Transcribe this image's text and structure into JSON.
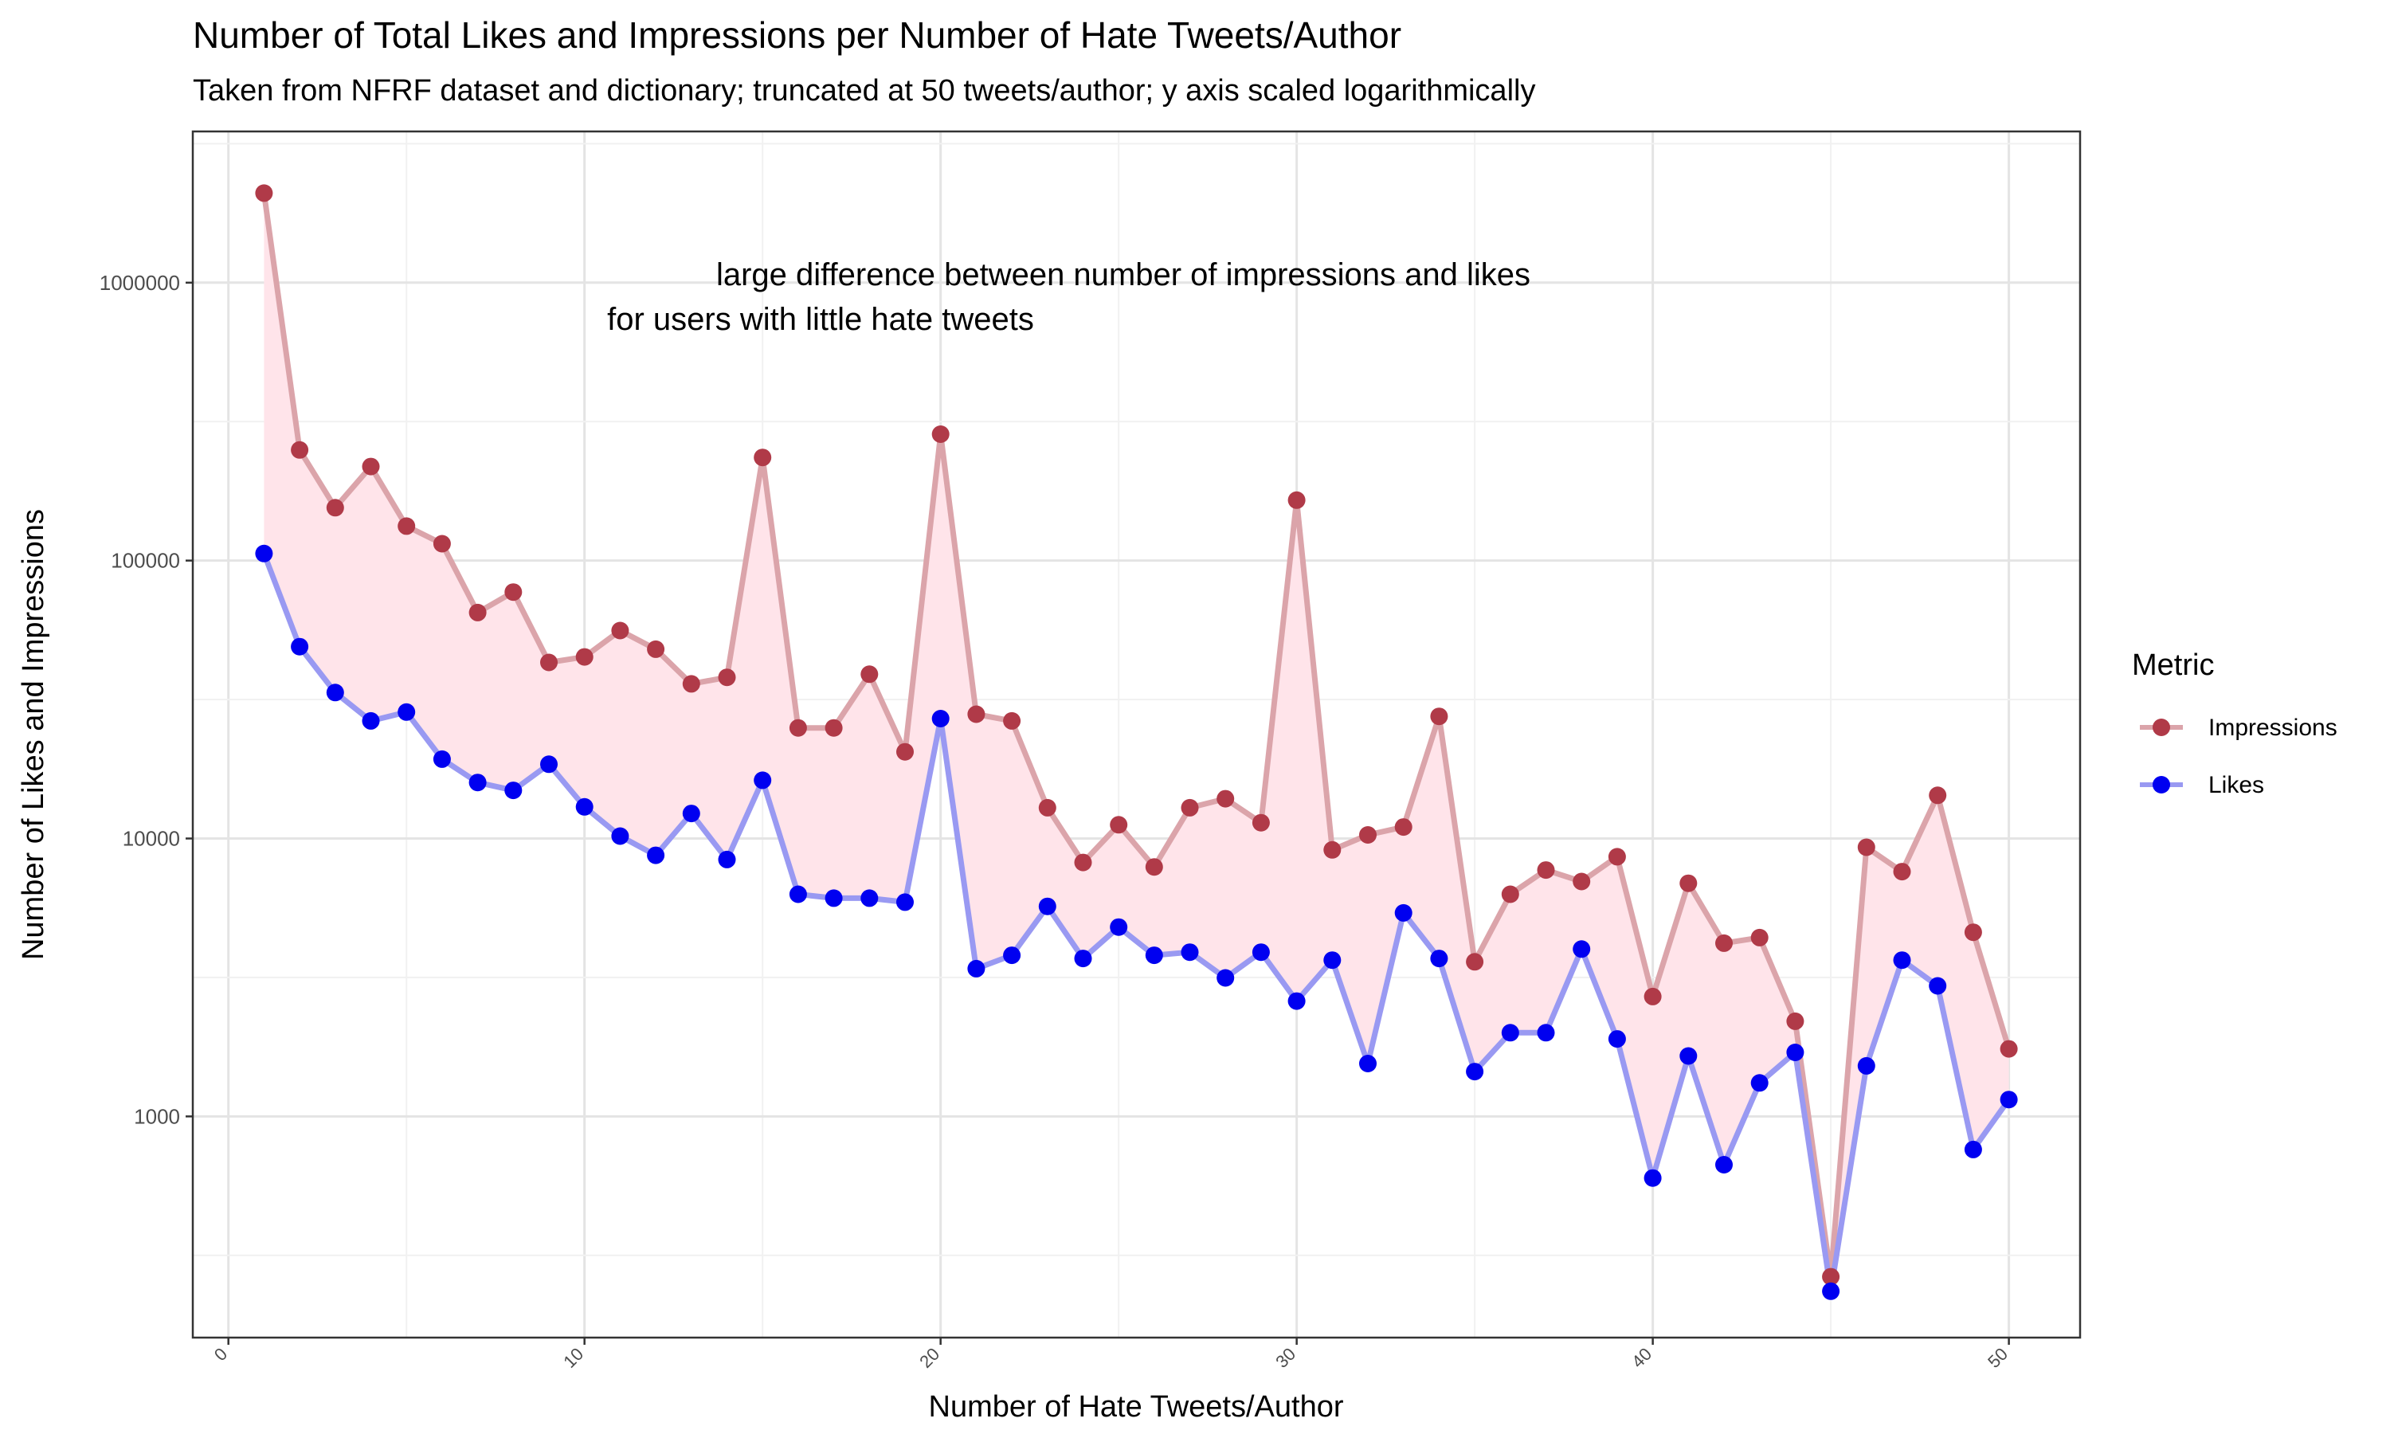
{
  "chart_data": {
    "type": "line",
    "title": "Number of Total Likes and Impressions per Number of Hate Tweets/Author",
    "subtitle": "Taken from NFRF dataset and dictionary; truncated at 50 tweets/author; y axis scaled logarithmically",
    "xlabel": "Number of Hate Tweets/Author",
    "ylabel": "Number of Likes and Impressions",
    "y_scale": "log10",
    "xlim": [
      -1,
      52
    ],
    "ylim": [
      160,
      3500000
    ],
    "x_ticks": [
      0,
      10,
      20,
      30,
      40,
      50
    ],
    "y_ticks": [
      1000,
      10000,
      100000,
      1000000
    ],
    "y_tick_labels": [
      "1000",
      "10000",
      "100000",
      "1000000"
    ],
    "grid": true,
    "ribbon_between_series": true,
    "annotation": [
      "large difference between number of impressions and likes",
      "for users with little hate tweets"
    ],
    "legend": {
      "title": "Metric",
      "position": "right"
    },
    "x": [
      1,
      2,
      3,
      4,
      5,
      6,
      7,
      8,
      9,
      10,
      11,
      12,
      13,
      14,
      15,
      16,
      17,
      18,
      19,
      20,
      21,
      22,
      23,
      24,
      25,
      26,
      27,
      28,
      29,
      30,
      31,
      32,
      33,
      34,
      35,
      36,
      37,
      38,
      39,
      40,
      41,
      42,
      43,
      44,
      45,
      46,
      47,
      48,
      49,
      50
    ],
    "series": [
      {
        "name": "Impressions",
        "color": "#b03a48",
        "line_color": "#dba4aa",
        "values": [
          2100000,
          250000,
          155000,
          218000,
          133000,
          115000,
          65000,
          77000,
          43000,
          45000,
          56000,
          48000,
          36000,
          38000,
          235000,
          25000,
          25000,
          39000,
          20500,
          285000,
          28000,
          26500,
          12900,
          8200,
          11200,
          7900,
          12900,
          13900,
          11400,
          165000,
          9100,
          10300,
          11000,
          27500,
          3600,
          6300,
          7700,
          7000,
          8600,
          2700,
          6900,
          4200,
          4400,
          2200,
          265,
          9300,
          7600,
          14300,
          4600,
          1750
        ]
      },
      {
        "name": "Likes",
        "color": "#0000f0",
        "line_color": "#9999f2",
        "values": [
          106000,
          49000,
          33500,
          26500,
          28500,
          19300,
          15900,
          14900,
          18500,
          13000,
          10200,
          8700,
          12300,
          8400,
          16200,
          6300,
          6100,
          6100,
          5900,
          27000,
          3400,
          3800,
          5700,
          3700,
          4800,
          3800,
          3900,
          3150,
          3900,
          2600,
          3650,
          1550,
          5400,
          3700,
          1450,
          2000,
          2000,
          4000,
          1900,
          600,
          1650,
          670,
          1320,
          1700,
          235,
          1520,
          3650,
          2950,
          760,
          1150
        ]
      }
    ]
  }
}
